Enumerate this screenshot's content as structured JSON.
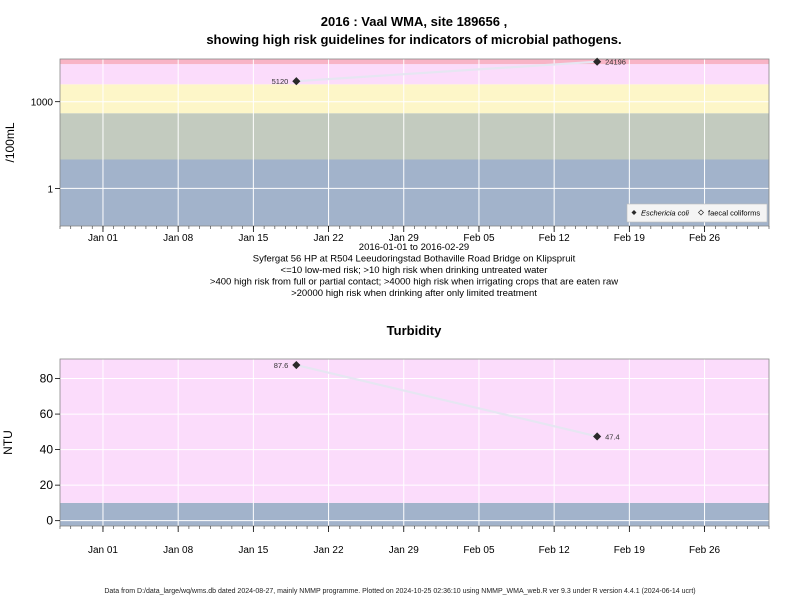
{
  "figure": {
    "title_line1": "2016 : Vaal WMA, site 189656 ,",
    "title_line2": "showing high risk guidelines for indicators of microbial pathogens.",
    "footer": "Data from D:/data_large/wq/wms.db dated 2024-08-27, mainly NMMP programme. Plotted on 2024-10-25 02:36:10 using NMMP_WMA_web.R ver 9.3 under R version 4.4.1 (2024-06-14 ucrt)"
  },
  "chart_data": [
    {
      "type": "line",
      "title": "",
      "ylabel": "/100mL",
      "y_scale": "log",
      "ylim": [
        0.05,
        30000
      ],
      "xlim": [
        "2015-12-28",
        "2016-03-03"
      ],
      "x_ticks": [
        "2016-01-01",
        "2016-01-08",
        "2016-01-15",
        "2016-01-22",
        "2016-01-29",
        "2016-02-05",
        "2016-02-12",
        "2016-02-19",
        "2016-02-26"
      ],
      "x_tick_labels": [
        "Jan 01",
        "Jan 08",
        "Jan 15",
        "Jan 22",
        "Jan 29",
        "Feb 05",
        "Feb 12",
        "Feb 19",
        "Feb 26"
      ],
      "y_ticks": [
        1,
        1000
      ],
      "y_tick_labels": [
        "1",
        "1000"
      ],
      "grid": true,
      "bands": [
        {
          "from": 0.05,
          "to": 10,
          "color": "#a2b3cb"
        },
        {
          "from": 10,
          "to": 400,
          "color": "#c3cbbf"
        },
        {
          "from": 400,
          "to": 4000,
          "color": "#fdf6c8"
        },
        {
          "from": 4000,
          "to": 20000,
          "color": "#fbdcfb"
        },
        {
          "from": 20000,
          "to": 30000,
          "color": "#f8b4c6"
        }
      ],
      "series": [
        {
          "name": "Eschericia coli",
          "marker": "diamond-filled",
          "points": [
            {
              "x": "2016-01-19",
              "y": 5120,
              "label": "5120"
            },
            {
              "x": "2016-02-16",
              "y": 24196,
              "label": "24196"
            }
          ]
        },
        {
          "name": "faecal coliforms",
          "marker": "diamond-open",
          "points": []
        }
      ],
      "legend": {
        "placement": "bottom-right"
      },
      "caption_lines": [
        "2016-01-01 to 2016-02-29",
        "Syfergat 56 HP at R504 Leeudoringstad Bothaville Road Bridge on Klipspruit",
        "<=10 low-med risk; >10 high risk when drinking untreated water",
        ">400 high risk from full or partial contact; >4000 high risk when irrigating crops that are eaten raw",
        ">20000 high risk when drinking after only limited treatment"
      ]
    },
    {
      "type": "line",
      "title": "Turbidity",
      "ylabel": "NTU",
      "y_scale": "linear",
      "ylim": [
        -3,
        91
      ],
      "xlim": [
        "2015-12-28",
        "2016-03-03"
      ],
      "x_ticks": [
        "2016-01-01",
        "2016-01-08",
        "2016-01-15",
        "2016-01-22",
        "2016-01-29",
        "2016-02-05",
        "2016-02-12",
        "2016-02-19",
        "2016-02-26"
      ],
      "x_tick_labels": [
        "Jan 01",
        "Jan 08",
        "Jan 15",
        "Jan 22",
        "Jan 29",
        "Feb 05",
        "Feb 12",
        "Feb 19",
        "Feb 26"
      ],
      "y_ticks": [
        0,
        20,
        40,
        60,
        80
      ],
      "y_tick_labels": [
        "0",
        "20",
        "40",
        "60",
        "80"
      ],
      "grid": true,
      "bands": [
        {
          "from": -3,
          "to": 10,
          "color": "#a2b3cb"
        },
        {
          "from": 10,
          "to": 91,
          "color": "#fbdcfb"
        }
      ],
      "series": [
        {
          "name": "",
          "marker": "diamond-filled",
          "points": [
            {
              "x": "2016-01-19",
              "y": 87.6,
              "label": "87.6"
            },
            {
              "x": "2016-02-16",
              "y": 47.4,
              "label": "47.4"
            }
          ]
        }
      ]
    }
  ]
}
